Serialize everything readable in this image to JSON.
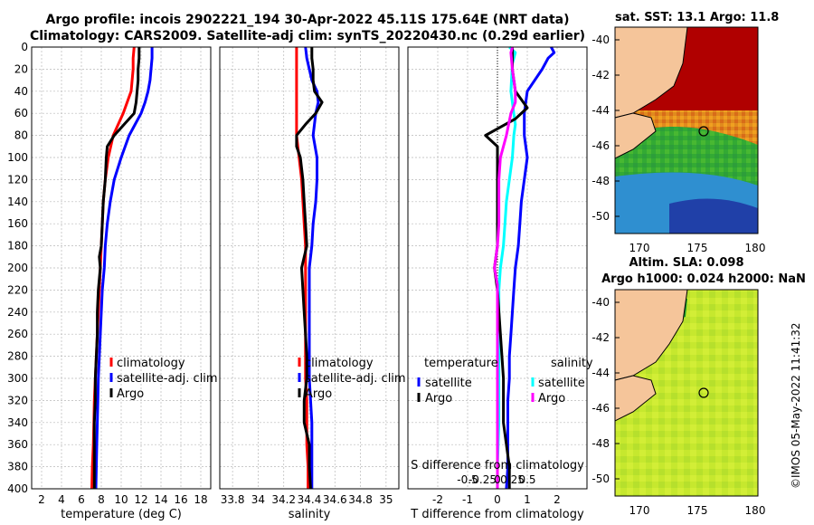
{
  "header": {
    "title_line1": "Argo profile: incois 2902221_194 30-Apr-2022 45.11S 175.64E (NRT data)",
    "title_line2": "Climatology: CARS2009. Satellite-adj clim: synTS_20220430.nc (0.29d earlier)"
  },
  "colors": {
    "clim": "#ff0000",
    "sat": "#0000ff",
    "argo": "#000000",
    "sat_s": "#00ffff",
    "argo_s": "#ff00ff"
  },
  "chart_data": [
    {
      "type": "line",
      "name": "temperature",
      "xlabel": "temperature (deg C)",
      "xlim": [
        1,
        19
      ],
      "xticks": [
        2,
        4,
        6,
        8,
        10,
        12,
        14,
        16,
        18
      ],
      "ylim": [
        0,
        400
      ],
      "yticks": [
        0,
        20,
        40,
        60,
        80,
        100,
        120,
        140,
        160,
        180,
        200,
        220,
        240,
        260,
        280,
        300,
        320,
        340,
        360,
        380,
        400
      ],
      "legend": [
        "climatology",
        "satellite-adj. clim",
        "Argo"
      ],
      "series": [
        {
          "name": "climatology",
          "color": "#ff0000",
          "points": [
            [
              11.3,
              0
            ],
            [
              11.2,
              10
            ],
            [
              11.2,
              20
            ],
            [
              11.1,
              30
            ],
            [
              11.0,
              40
            ],
            [
              10.6,
              50
            ],
            [
              10.2,
              60
            ],
            [
              9.7,
              70
            ],
            [
              9.2,
              80
            ],
            [
              8.7,
              100
            ],
            [
              8.4,
              120
            ],
            [
              8.2,
              140
            ],
            [
              8.1,
              160
            ],
            [
              8.0,
              180
            ],
            [
              7.9,
              200
            ],
            [
              7.8,
              220
            ],
            [
              7.7,
              240
            ],
            [
              7.6,
              260
            ],
            [
              7.5,
              280
            ],
            [
              7.4,
              300
            ],
            [
              7.3,
              320
            ],
            [
              7.25,
              340
            ],
            [
              7.2,
              360
            ],
            [
              7.1,
              380
            ],
            [
              7.05,
              400
            ]
          ]
        },
        {
          "name": "satellite-adj. clim",
          "color": "#0000ff",
          "points": [
            [
              13.1,
              0
            ],
            [
              13.1,
              10
            ],
            [
              13.0,
              20
            ],
            [
              12.9,
              30
            ],
            [
              12.7,
              40
            ],
            [
              12.4,
              50
            ],
            [
              12.0,
              60
            ],
            [
              11.4,
              70
            ],
            [
              10.8,
              80
            ],
            [
              10.0,
              100
            ],
            [
              9.3,
              120
            ],
            [
              8.9,
              140
            ],
            [
              8.6,
              160
            ],
            [
              8.4,
              180
            ],
            [
              8.3,
              200
            ],
            [
              8.1,
              220
            ],
            [
              8.0,
              240
            ],
            [
              7.9,
              260
            ],
            [
              7.8,
              280
            ],
            [
              7.7,
              300
            ],
            [
              7.65,
              320
            ],
            [
              7.6,
              340
            ],
            [
              7.55,
              360
            ],
            [
              7.5,
              380
            ],
            [
              7.45,
              400
            ]
          ]
        },
        {
          "name": "Argo",
          "color": "#000000",
          "points": [
            [
              11.8,
              0
            ],
            [
              11.8,
              10
            ],
            [
              11.7,
              20
            ],
            [
              11.7,
              30
            ],
            [
              11.6,
              40
            ],
            [
              11.5,
              50
            ],
            [
              11.3,
              60
            ],
            [
              10.3,
              70
            ],
            [
              9.3,
              80
            ],
            [
              8.6,
              90
            ],
            [
              8.5,
              100
            ],
            [
              8.4,
              120
            ],
            [
              8.2,
              140
            ],
            [
              8.1,
              160
            ],
            [
              8.0,
              180
            ],
            [
              7.8,
              190
            ],
            [
              7.9,
              200
            ],
            [
              7.8,
              210
            ],
            [
              7.7,
              220
            ],
            [
              7.6,
              240
            ],
            [
              7.6,
              260
            ],
            [
              7.5,
              280
            ],
            [
              7.4,
              300
            ],
            [
              7.4,
              320
            ],
            [
              7.3,
              340
            ],
            [
              7.3,
              360
            ],
            [
              7.3,
              380
            ],
            [
              7.3,
              400
            ]
          ]
        }
      ]
    },
    {
      "type": "line",
      "name": "salinity",
      "xlabel": "salinity",
      "xlim": [
        33.7,
        35.1
      ],
      "xticks": [
        33.8,
        34,
        34.2,
        34.4,
        34.6,
        34.8,
        35
      ],
      "xticklabels": [
        "33.8",
        "34",
        "34.2",
        "34.4",
        "34.6",
        "34.8",
        "35"
      ],
      "ylim": [
        0,
        400
      ],
      "legend": [
        "climatology",
        "satellite-adj. clim",
        "Argo"
      ],
      "series": [
        {
          "name": "climatology",
          "color": "#ff0000",
          "points": [
            [
              34.3,
              0
            ],
            [
              34.3,
              20
            ],
            [
              34.3,
              40
            ],
            [
              34.3,
              60
            ],
            [
              34.3,
              80
            ],
            [
              34.32,
              100
            ],
            [
              34.34,
              120
            ],
            [
              34.35,
              140
            ],
            [
              34.36,
              160
            ],
            [
              34.37,
              180
            ],
            [
              34.37,
              200
            ],
            [
              34.37,
              220
            ],
            [
              34.37,
              240
            ],
            [
              34.37,
              260
            ],
            [
              34.37,
              280
            ],
            [
              34.37,
              300
            ],
            [
              34.38,
              320
            ],
            [
              34.38,
              340
            ],
            [
              34.38,
              360
            ],
            [
              34.39,
              380
            ],
            [
              34.39,
              400
            ]
          ]
        },
        {
          "name": "satellite-adj. clim",
          "color": "#0000ff",
          "points": [
            [
              34.37,
              0
            ],
            [
              34.38,
              10
            ],
            [
              34.4,
              20
            ],
            [
              34.42,
              30
            ],
            [
              34.46,
              40
            ],
            [
              34.47,
              50
            ],
            [
              34.45,
              60
            ],
            [
              34.43,
              80
            ],
            [
              34.46,
              100
            ],
            [
              34.46,
              120
            ],
            [
              34.45,
              140
            ],
            [
              34.43,
              160
            ],
            [
              34.42,
              180
            ],
            [
              34.4,
              200
            ],
            [
              34.4,
              220
            ],
            [
              34.4,
              240
            ],
            [
              34.4,
              260
            ],
            [
              34.4,
              280
            ],
            [
              34.4,
              300
            ],
            [
              34.41,
              320
            ],
            [
              34.42,
              340
            ],
            [
              34.42,
              360
            ],
            [
              34.42,
              380
            ],
            [
              34.42,
              400
            ]
          ]
        },
        {
          "name": "Argo",
          "color": "#000000",
          "points": [
            [
              34.42,
              0
            ],
            [
              34.42,
              10
            ],
            [
              34.43,
              20
            ],
            [
              34.43,
              30
            ],
            [
              34.44,
              40
            ],
            [
              34.5,
              50
            ],
            [
              34.45,
              60
            ],
            [
              34.37,
              70
            ],
            [
              34.3,
              80
            ],
            [
              34.3,
              90
            ],
            [
              34.33,
              100
            ],
            [
              34.35,
              120
            ],
            [
              34.36,
              140
            ],
            [
              34.37,
              160
            ],
            [
              34.38,
              180
            ],
            [
              34.34,
              200
            ],
            [
              34.35,
              220
            ],
            [
              34.36,
              240
            ],
            [
              34.37,
              260
            ],
            [
              34.38,
              280
            ],
            [
              34.38,
              300
            ],
            [
              34.36,
              320
            ],
            [
              34.36,
              340
            ],
            [
              34.4,
              360
            ],
            [
              34.4,
              380
            ],
            [
              34.41,
              400
            ]
          ]
        }
      ]
    },
    {
      "type": "line",
      "name": "difference from climatology",
      "xlabel": "T difference from climatology",
      "xlabel2": "S difference from climatology",
      "xlim": [
        -3,
        3
      ],
      "xticks": [
        -2,
        -1,
        0,
        1,
        2
      ],
      "xticks2": [
        "-0.5",
        "-0.25",
        "0",
        "0.25",
        "0.5"
      ],
      "ylim": [
        0,
        400
      ],
      "legend_left_title": "temperature",
      "legend_right_title": "salinity",
      "legend_left": [
        "satellite",
        "Argo"
      ],
      "legend_right": [
        "satellite",
        "Argo"
      ],
      "series": [
        {
          "name": "T satellite",
          "color": "#0000ff",
          "points": [
            [
              1.8,
              0
            ],
            [
              1.9,
              5
            ],
            [
              1.7,
              10
            ],
            [
              1.5,
              20
            ],
            [
              1.0,
              40
            ],
            [
              0.9,
              60
            ],
            [
              0.9,
              80
            ],
            [
              1.0,
              100
            ],
            [
              0.9,
              120
            ],
            [
              0.8,
              140
            ],
            [
              0.75,
              160
            ],
            [
              0.7,
              180
            ],
            [
              0.6,
              200
            ],
            [
              0.55,
              220
            ],
            [
              0.5,
              240
            ],
            [
              0.45,
              260
            ],
            [
              0.4,
              280
            ],
            [
              0.4,
              300
            ],
            [
              0.35,
              320
            ],
            [
              0.35,
              340
            ],
            [
              0.35,
              360
            ],
            [
              0.35,
              380
            ],
            [
              0.3,
              400
            ]
          ]
        },
        {
          "name": "S satellite",
          "color": "#00ffff",
          "points": [
            [
              0.4,
              0
            ],
            [
              0.6,
              5
            ],
            [
              0.5,
              15
            ],
            [
              0.45,
              40
            ],
            [
              0.55,
              60
            ],
            [
              0.6,
              70
            ],
            [
              0.55,
              80
            ],
            [
              0.5,
              100
            ],
            [
              0.4,
              120
            ],
            [
              0.3,
              140
            ],
            [
              0.25,
              160
            ],
            [
              0.2,
              180
            ],
            [
              0.1,
              200
            ],
            [
              0.05,
              220
            ],
            [
              0.05,
              260
            ],
            [
              0.05,
              300
            ],
            [
              0.05,
              340
            ],
            [
              0.0,
              380
            ],
            [
              0.0,
              400
            ]
          ]
        },
        {
          "name": "T Argo",
          "color": "#000000",
          "points": [
            [
              0.5,
              0
            ],
            [
              0.5,
              10
            ],
            [
              0.5,
              20
            ],
            [
              0.6,
              40
            ],
            [
              1.0,
              55
            ],
            [
              0.6,
              65
            ],
            [
              -0.4,
              80
            ],
            [
              0.0,
              90
            ],
            [
              0.0,
              100
            ],
            [
              0.0,
              140
            ],
            [
              0.0,
              180
            ],
            [
              -0.1,
              200
            ],
            [
              0.0,
              220
            ],
            [
              0.1,
              260
            ],
            [
              0.2,
              300
            ],
            [
              0.2,
              340
            ],
            [
              0.3,
              360
            ],
            [
              0.4,
              380
            ],
            [
              0.4,
              400
            ]
          ]
        },
        {
          "name": "S Argo",
          "color": "#ff00ff",
          "points": [
            [
              0.5,
              0
            ],
            [
              0.45,
              5
            ],
            [
              0.5,
              20
            ],
            [
              0.6,
              40
            ],
            [
              0.6,
              50
            ],
            [
              0.45,
              60
            ],
            [
              0.3,
              80
            ],
            [
              0.1,
              100
            ],
            [
              0.05,
              120
            ],
            [
              0.05,
              140
            ],
            [
              0.05,
              160
            ],
            [
              0.0,
              180
            ],
            [
              -0.1,
              200
            ],
            [
              0.0,
              215
            ],
            [
              0.0,
              240
            ],
            [
              0.0,
              280
            ],
            [
              0.0,
              320
            ],
            [
              0.0,
              360
            ],
            [
              0.0,
              400
            ]
          ]
        }
      ]
    }
  ],
  "maps": {
    "sst_title": "sat. SST: 13.1 Argo: 11.8",
    "sla_title_line1": "Altim. SLA: 0.098",
    "sla_title_line2": "Argo h1000: 0.024 h2000: NaN",
    "yticks": [
      "-40",
      "-42",
      "-44",
      "-46",
      "-48",
      "-50"
    ],
    "xticks": [
      "170",
      "175",
      "180"
    ]
  },
  "stamp": "©IMOS 05-May-2022 11:41:32"
}
